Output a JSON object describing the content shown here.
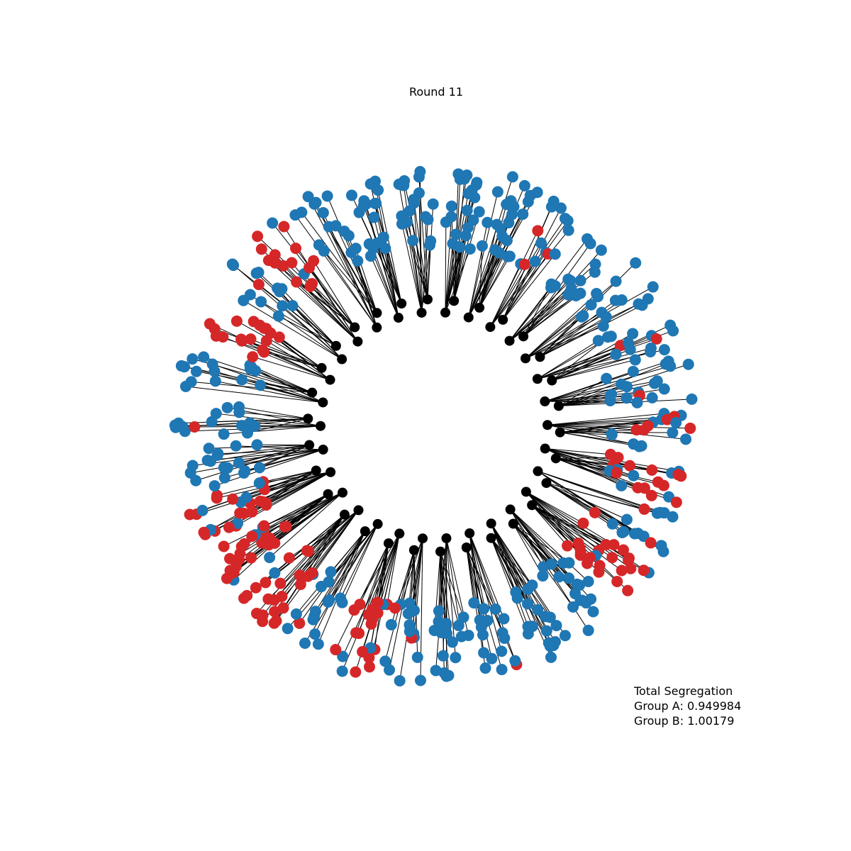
{
  "title": "Round 11",
  "stats": {
    "heading": "Total Segregation",
    "group_a": "Group A: 0.949984",
    "group_b": "Group B: 1.00179"
  },
  "colors": {
    "hub": "#000000",
    "group_a": "#1f77b4",
    "group_b": "#d62728",
    "edge": "#000000"
  },
  "graph": {
    "type": "radial-network",
    "clusters": [
      {
        "label_position": "top",
        "count": 18,
        "red": 0
      },
      {
        "label_position": "top",
        "count": 22,
        "red": 0
      },
      {
        "label_position": "top-right",
        "count": 22,
        "red": 0
      },
      {
        "label_position": "top-right",
        "count": 14,
        "red": 3
      },
      {
        "label_position": "right",
        "count": 16,
        "red": 0
      },
      {
        "label_position": "right",
        "count": 16,
        "red": 0
      },
      {
        "label_position": "right",
        "count": 16,
        "red": 2
      },
      {
        "label_position": "right",
        "count": 20,
        "red": 1
      },
      {
        "label_position": "right",
        "count": 18,
        "red": 6
      },
      {
        "label_position": "right",
        "count": 22,
        "red": 15
      },
      {
        "label_position": "bottom-right",
        "count": 16,
        "red": 3
      },
      {
        "label_position": "bottom-right",
        "count": 24,
        "red": 22
      },
      {
        "label_position": "bottom",
        "count": 18,
        "red": 0
      },
      {
        "label_position": "bottom",
        "count": 20,
        "red": 0
      },
      {
        "label_position": "bottom",
        "count": 18,
        "red": 1
      },
      {
        "label_position": "bottom",
        "count": 18,
        "red": 0
      },
      {
        "label_position": "bottom",
        "count": 16,
        "red": 2
      },
      {
        "label_position": "bottom-left",
        "count": 22,
        "red": 18
      },
      {
        "label_position": "bottom-left",
        "count": 16,
        "red": 1
      },
      {
        "label_position": "left",
        "count": 24,
        "red": 22
      },
      {
        "label_position": "left",
        "count": 26,
        "red": 22
      },
      {
        "label_position": "left",
        "count": 26,
        "red": 20
      },
      {
        "label_position": "left",
        "count": 18,
        "red": 0
      },
      {
        "label_position": "left",
        "count": 16,
        "red": 1
      },
      {
        "label_position": "left",
        "count": 16,
        "red": 0
      },
      {
        "label_position": "top-left",
        "count": 18,
        "red": 18
      },
      {
        "label_position": "top-left",
        "count": 14,
        "red": 1
      },
      {
        "label_position": "top-left",
        "count": 16,
        "red": 14
      },
      {
        "label_position": "top-left",
        "count": 16,
        "red": 0
      },
      {
        "label_position": "top",
        "count": 18,
        "red": 0
      }
    ]
  }
}
